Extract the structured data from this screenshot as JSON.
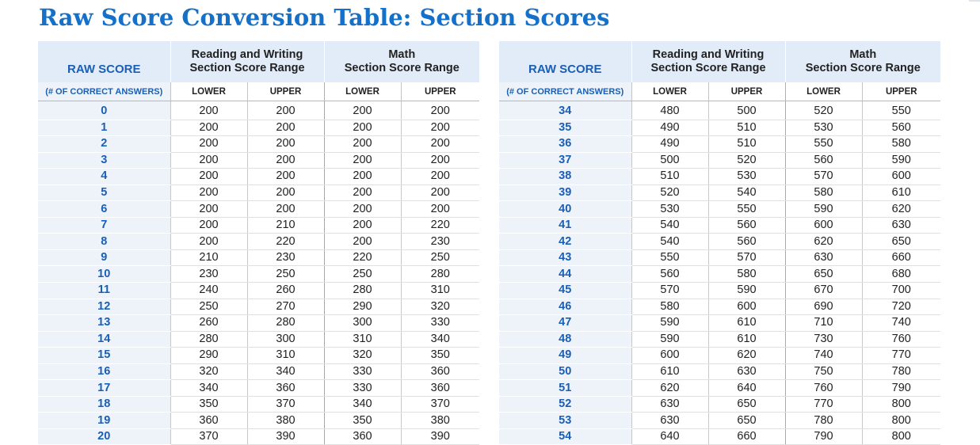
{
  "title": "Raw Score Conversion Table: Section Scores",
  "headers": {
    "raw_score": "RAW SCORE",
    "raw_sub": "(# OF CORRECT ANSWERS)",
    "rw_line1": "Reading and Writing",
    "rw_line2": "Section Score Range",
    "math_line1": "Math",
    "math_line2": "Section Score Range",
    "lower": "LOWER",
    "upper": "UPPER"
  },
  "left_rows": [
    [
      "0",
      "200",
      "200",
      "200",
      "200"
    ],
    [
      "1",
      "200",
      "200",
      "200",
      "200"
    ],
    [
      "2",
      "200",
      "200",
      "200",
      "200"
    ],
    [
      "3",
      "200",
      "200",
      "200",
      "200"
    ],
    [
      "4",
      "200",
      "200",
      "200",
      "200"
    ],
    [
      "5",
      "200",
      "200",
      "200",
      "200"
    ],
    [
      "6",
      "200",
      "200",
      "200",
      "200"
    ],
    [
      "7",
      "200",
      "210",
      "200",
      "220"
    ],
    [
      "8",
      "200",
      "220",
      "200",
      "230"
    ],
    [
      "9",
      "210",
      "230",
      "220",
      "250"
    ],
    [
      "10",
      "230",
      "250",
      "250",
      "280"
    ],
    [
      "11",
      "240",
      "260",
      "280",
      "310"
    ],
    [
      "12",
      "250",
      "270",
      "290",
      "320"
    ],
    [
      "13",
      "260",
      "280",
      "300",
      "330"
    ],
    [
      "14",
      "280",
      "300",
      "310",
      "340"
    ],
    [
      "15",
      "290",
      "310",
      "320",
      "350"
    ],
    [
      "16",
      "320",
      "340",
      "330",
      "360"
    ],
    [
      "17",
      "340",
      "360",
      "330",
      "360"
    ],
    [
      "18",
      "350",
      "370",
      "340",
      "370"
    ],
    [
      "19",
      "360",
      "380",
      "350",
      "380"
    ],
    [
      "20",
      "370",
      "390",
      "360",
      "390"
    ]
  ],
  "right_rows": [
    [
      "34",
      "480",
      "500",
      "520",
      "550"
    ],
    [
      "35",
      "490",
      "510",
      "530",
      "560"
    ],
    [
      "36",
      "490",
      "510",
      "550",
      "580"
    ],
    [
      "37",
      "500",
      "520",
      "560",
      "590"
    ],
    [
      "38",
      "510",
      "530",
      "570",
      "600"
    ],
    [
      "39",
      "520",
      "540",
      "580",
      "610"
    ],
    [
      "40",
      "530",
      "550",
      "590",
      "620"
    ],
    [
      "41",
      "540",
      "560",
      "600",
      "630"
    ],
    [
      "42",
      "540",
      "560",
      "620",
      "650"
    ],
    [
      "43",
      "550",
      "570",
      "630",
      "660"
    ],
    [
      "44",
      "560",
      "580",
      "650",
      "680"
    ],
    [
      "45",
      "570",
      "590",
      "670",
      "700"
    ],
    [
      "46",
      "580",
      "600",
      "690",
      "720"
    ],
    [
      "47",
      "590",
      "610",
      "710",
      "740"
    ],
    [
      "48",
      "590",
      "610",
      "730",
      "760"
    ],
    [
      "49",
      "600",
      "620",
      "740",
      "770"
    ],
    [
      "50",
      "610",
      "630",
      "750",
      "780"
    ],
    [
      "51",
      "620",
      "640",
      "760",
      "790"
    ],
    [
      "52",
      "630",
      "650",
      "770",
      "800"
    ],
    [
      "53",
      "630",
      "650",
      "780",
      "800"
    ],
    [
      "54",
      "640",
      "660",
      "790",
      "800"
    ]
  ]
}
